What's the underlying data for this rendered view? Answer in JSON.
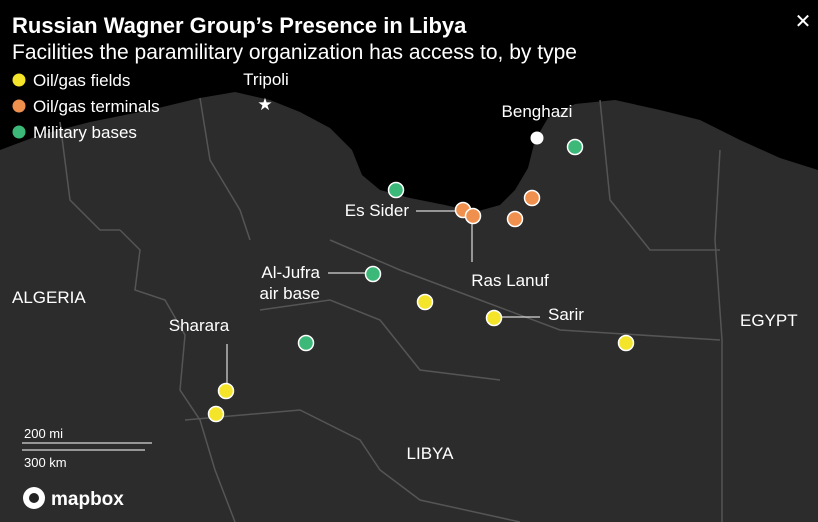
{
  "header": {
    "title": "Russian Wagner Group’s Presence in Libya",
    "subtitle": "Facilities the paramilitary organization has access to, by type",
    "close": "✕"
  },
  "legend": [
    {
      "label": "Oil/gas fields",
      "color": "#f5e52a"
    },
    {
      "label": "Oil/gas terminals",
      "color": "#f0904f"
    },
    {
      "label": "Military bases",
      "color": "#3cb878"
    }
  ],
  "places": {
    "tripoli": "Tripoli",
    "benghazi": "Benghazi",
    "es_sider": "Es Sider",
    "ras_lanuf": "Ras Lanuf",
    "al_jufra": [
      "Al-Jufra",
      "air base"
    ],
    "sarir": "Sarir",
    "sharara": "Sharara"
  },
  "countries": {
    "algeria": "ALGERIA",
    "egypt": "EGYPT",
    "libya": "LIBYA"
  },
  "scale": {
    "miles": "200 mi",
    "km": "300 km"
  },
  "attribution": "mapbox"
}
